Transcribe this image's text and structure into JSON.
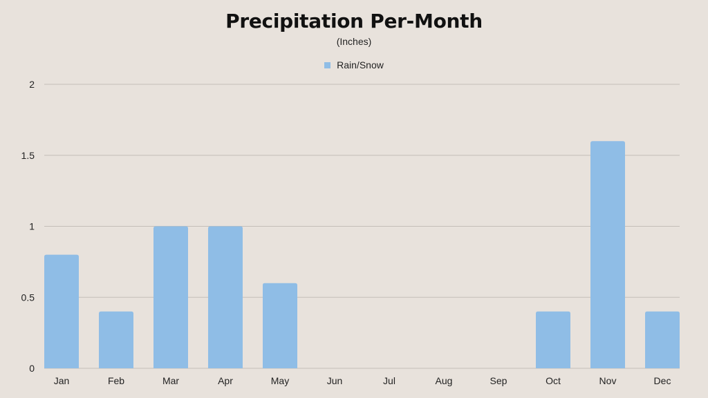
{
  "chart_data": {
    "type": "bar",
    "title": "Precipitation Per-Month",
    "subtitle": "(Inches)",
    "categories": [
      "Jan",
      "Feb",
      "Mar",
      "Apr",
      "May",
      "Jun",
      "Jul",
      "Aug",
      "Sep",
      "Oct",
      "Nov",
      "Dec"
    ],
    "series": [
      {
        "name": "Rain/Snow",
        "values": [
          0.8,
          0.4,
          1.0,
          1.0,
          0.6,
          0,
          0,
          0,
          0,
          0.4,
          1.6,
          0.4
        ]
      }
    ],
    "xlabel": "",
    "ylabel": "",
    "ylim": [
      0,
      2
    ],
    "yticks": [
      "0",
      "0.5",
      "1",
      "1.5",
      "2"
    ],
    "grid": true,
    "legend_position": "top-center",
    "colors": {
      "bar": "#8fbde6",
      "grid": "#c4beb8",
      "background": "#e8e2dc"
    }
  }
}
